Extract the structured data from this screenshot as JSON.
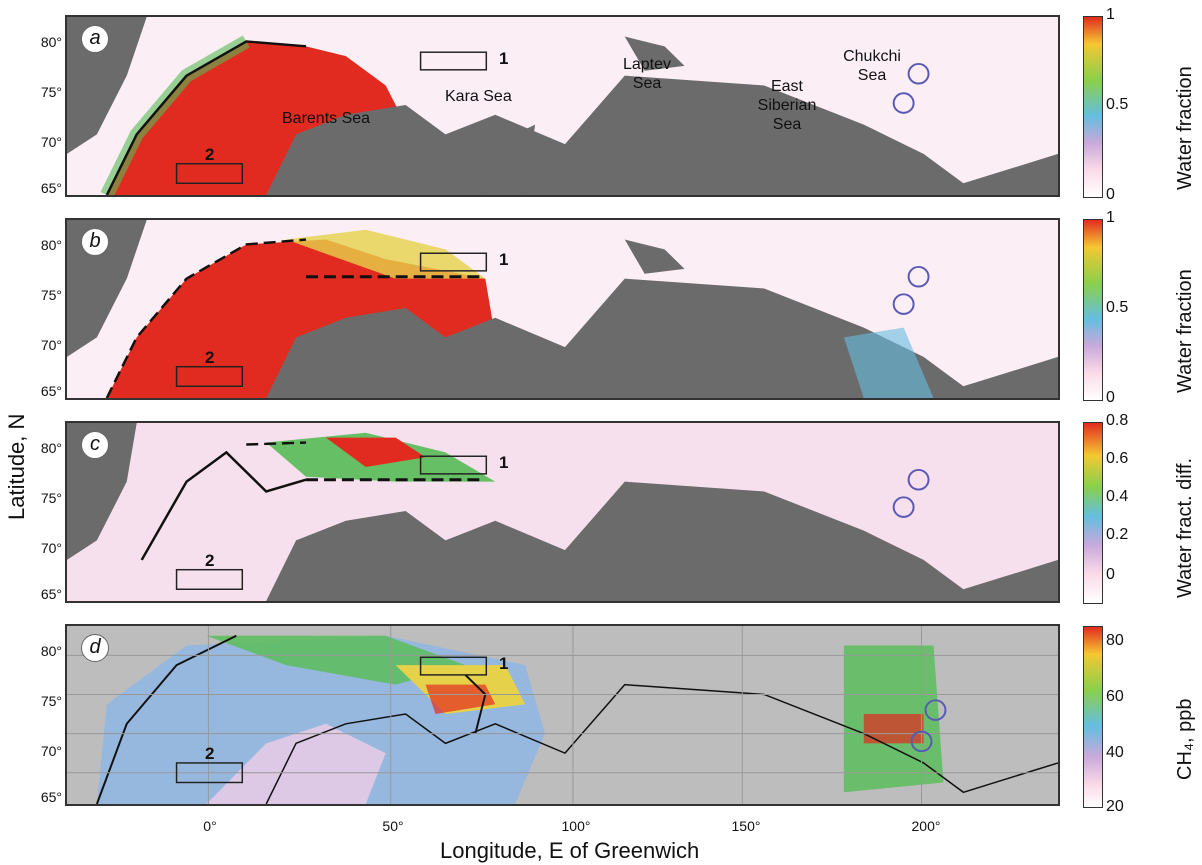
{
  "panels": [
    {
      "letter": "a"
    },
    {
      "letter": "b"
    },
    {
      "letter": "c"
    },
    {
      "letter": "d"
    }
  ],
  "y_axis_label": "Latitude, N",
  "x_axis_label": "Longitude, E of Greenwich",
  "lat_ticks": [
    "80°",
    "75°",
    "70°",
    "65°"
  ],
  "lon_ticks": [
    "0°",
    "50°",
    "100°",
    "150°",
    "200°"
  ],
  "sea_labels": {
    "barents": "Barents Sea",
    "kara": "Kara Sea",
    "laptev": "Laptev Sea",
    "east_siberian": "East Siberian Sea",
    "chukchi": "Chukchi Sea"
  },
  "box_labels": [
    "1",
    "2"
  ],
  "colorbars": [
    {
      "title": "Water fraction",
      "ticks": [
        "1",
        "0.5",
        "0"
      ]
    },
    {
      "title": "Water fraction",
      "ticks": [
        "1",
        "0.5",
        "0"
      ]
    },
    {
      "title": "Water fract. diff.",
      "ticks": [
        "0.8",
        "0.6",
        "0.4",
        "0.2",
        "0"
      ]
    },
    {
      "title": "CH₄, ppb",
      "ticks": [
        "80",
        "60",
        "40",
        "20"
      ]
    }
  ],
  "colors": {
    "land": "#6b6b6b",
    "ice": "#fbeef4",
    "open_water": "#e22b20",
    "grid_bg": "#bdbdbd",
    "circle": "#5a5ab4"
  }
}
